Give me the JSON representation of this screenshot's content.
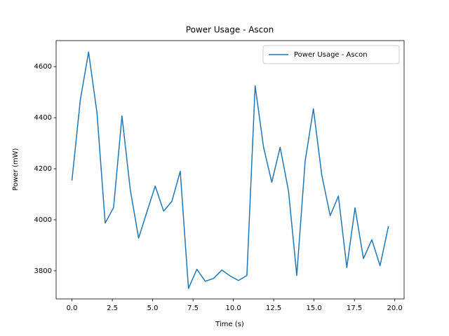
{
  "chart_data": {
    "type": "line",
    "title": "Power Usage - Ascon",
    "xlabel": "Time (s)",
    "ylabel": "Power (mW)",
    "x": [
      0,
      0.52,
      1.03,
      1.55,
      2.06,
      2.58,
      3.1,
      3.61,
      4.13,
      4.64,
      5.16,
      5.68,
      6.19,
      6.71,
      7.22,
      7.74,
      8.26,
      8.77,
      9.29,
      9.8,
      10.32,
      10.84,
      11.35,
      11.87,
      12.38,
      12.9,
      13.42,
      13.93,
      14.45,
      14.96,
      15.48,
      16.0,
      16.51,
      17.03,
      17.54,
      18.06,
      18.58,
      19.09,
      19.61
    ],
    "series": [
      {
        "name": "Power Usage - Ascon",
        "color": "#1f77b4",
        "values": [
          4154,
          4470,
          4657,
          4420,
          3987,
          4048,
          4407,
          4120,
          3928,
          4030,
          4132,
          4034,
          4072,
          4190,
          3731,
          3806,
          3759,
          3770,
          3803,
          3780,
          3762,
          3782,
          4525,
          4285,
          4147,
          4284,
          4112,
          3782,
          4230,
          4435,
          4175,
          4016,
          4093,
          3813,
          4047,
          3848,
          3922,
          3820,
          3975
        ]
      }
    ],
    "xlim": [
      -0.98,
      20.58
    ],
    "ylim": [
      3690,
      4702
    ],
    "xticks": [
      {
        "value": 0,
        "label": "0.0"
      },
      2.5,
      {
        "value": 5,
        "label": "5.0"
      },
      7.5,
      {
        "value": 10,
        "label": "10.0"
      },
      12.5,
      {
        "value": 15,
        "label": "15.0"
      },
      17.5,
      {
        "value": 20,
        "label": "20.0"
      }
    ],
    "yticks": [
      3800,
      4000,
      4200,
      4400,
      4600
    ],
    "grid": false,
    "legend": "upper right"
  }
}
